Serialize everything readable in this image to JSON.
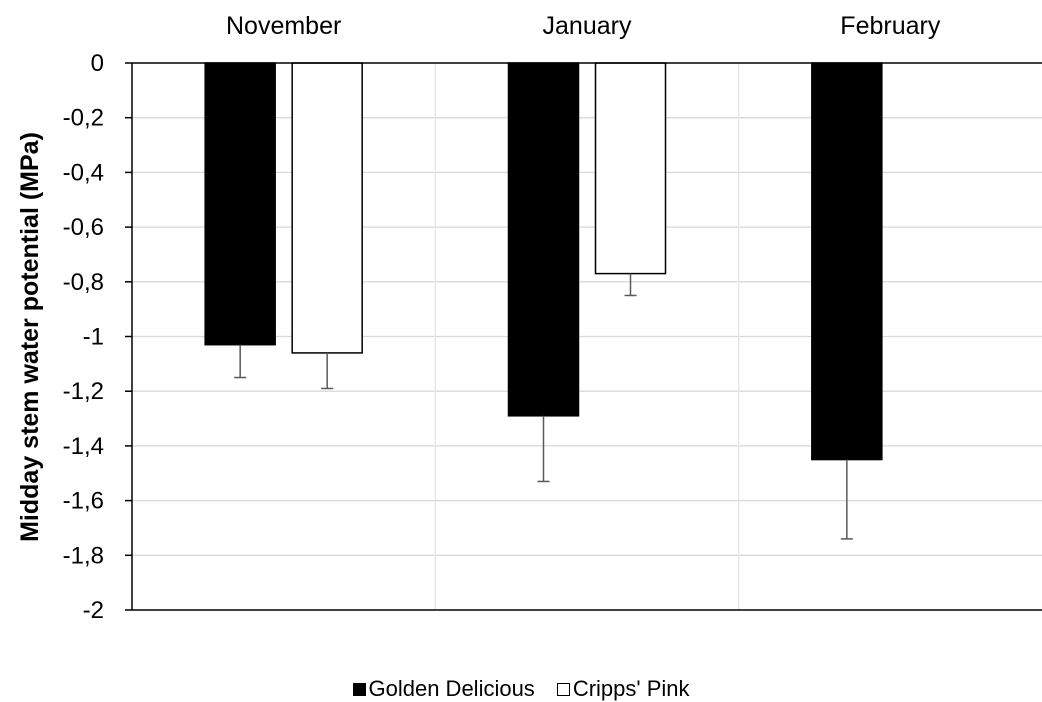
{
  "chart_data": {
    "type": "bar",
    "categories": [
      "November",
      "January",
      "February"
    ],
    "series": [
      {
        "name": "Golden Delicious",
        "values": [
          -1.03,
          -1.29,
          -1.45
        ],
        "errors": [
          0.12,
          0.24,
          0.29
        ],
        "color": "#000000"
      },
      {
        "name": "Cripps' Pink",
        "values": [
          -1.06,
          -0.77,
          null
        ],
        "errors": [
          0.13,
          0.08,
          null
        ],
        "color": "#ffffff"
      }
    ],
    "ylabel": "Midday stem water potential (MPa)",
    "ylim": [
      -2,
      0
    ],
    "yticks": [
      0,
      -0.2,
      -0.4,
      -0.6,
      -0.8,
      -1,
      -1.2,
      -1.4,
      -1.6,
      -1.8,
      -2
    ],
    "ytick_labels": [
      "0",
      "-0,2",
      "-0,4",
      "-0,6",
      "-0,8",
      "-1",
      "-1,2",
      "-1,4",
      "-1,6",
      "-1,8",
      "-2"
    ],
    "x_axis_position": "top",
    "grid": true,
    "legend_position": "bottom"
  }
}
